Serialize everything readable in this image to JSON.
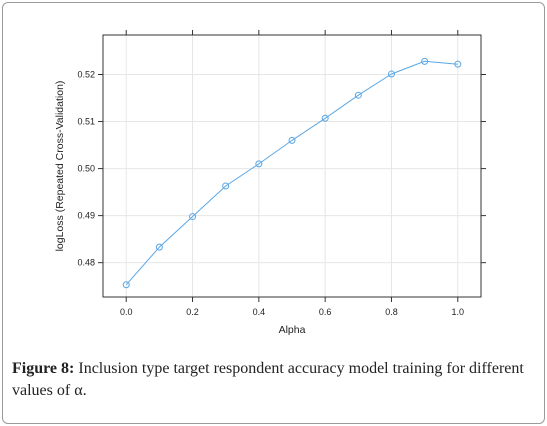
{
  "chart_data": {
    "type": "line",
    "xlabel": "Alpha",
    "ylabel": "logLoss (Repeated Cross-Validation)",
    "xlim": [
      -0.07,
      1.07
    ],
    "ylim": [
      0.4727,
      0.5284
    ],
    "x_ticks": [
      0.0,
      0.2,
      0.4,
      0.6,
      0.8,
      1.0
    ],
    "x_tick_labels": [
      "0.0",
      "0.2",
      "0.4",
      "0.6",
      "0.8",
      "1.0"
    ],
    "y_ticks": [
      0.48,
      0.49,
      0.5,
      0.51,
      0.52
    ],
    "y_tick_labels": [
      "0.48",
      "0.49",
      "0.50",
      "0.51",
      "0.52"
    ],
    "grid": true,
    "line_color": "#5aa7e6",
    "series": [
      {
        "x": [
          0.0,
          0.1,
          0.2,
          0.3,
          0.4,
          0.5,
          0.6,
          0.7,
          0.8,
          0.9,
          1.0
        ],
        "values": [
          0.4753,
          0.4833,
          0.4898,
          0.4963,
          0.501,
          0.506,
          0.5107,
          0.5156,
          0.5201,
          0.5228,
          0.5222
        ]
      }
    ]
  },
  "caption": {
    "label": "Figure 8:",
    "text": " Inclusion type target respondent accuracy model training for different values of α."
  }
}
